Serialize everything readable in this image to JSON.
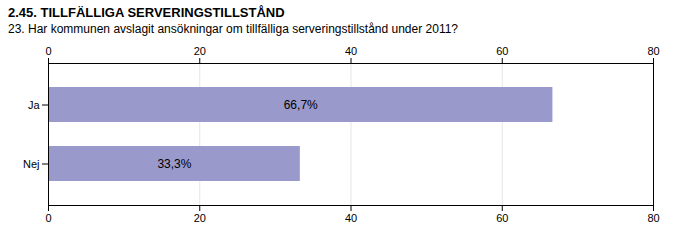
{
  "chart_data": {
    "type": "bar",
    "orientation": "horizontal",
    "title": "2.45. TILLFÄLLIGA SERVERINGSTILLSTÅND",
    "subtitle": "23. Har kommunen avslagit ansökningar om tillfälliga serveringstillstånd under 2011?",
    "categories": [
      "Nej",
      "Ja"
    ],
    "values": [
      33.3,
      66.7
    ],
    "value_labels": [
      "33,3%",
      "66,7%"
    ],
    "data_labels": true,
    "color": "#9999cc",
    "xlim": [
      0,
      80
    ],
    "xticks": [
      0,
      20,
      40,
      60,
      80
    ],
    "grid": true
  }
}
